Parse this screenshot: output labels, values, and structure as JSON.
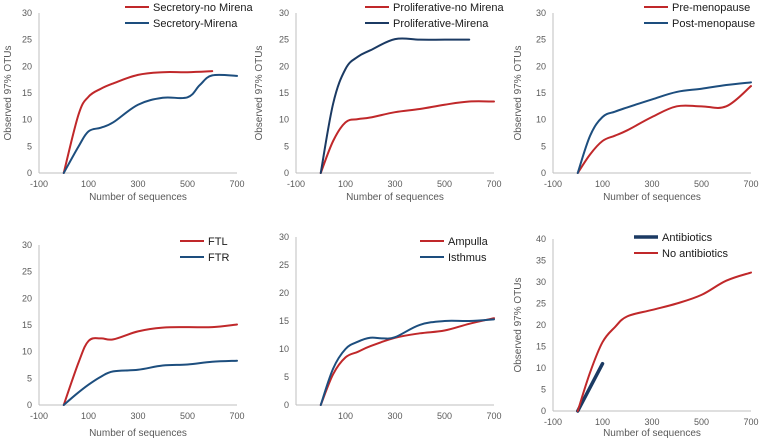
{
  "colors": {
    "red": "#c0282a",
    "navy": "#1d4e7e",
    "darknavy": "#1b3a63",
    "axis": "#bfbfbf"
  },
  "chart_data": [
    {
      "type": "line",
      "xlabel": "Number of sequences",
      "ylabel": "Observed 97% OTUs",
      "xlim": [
        -100,
        700
      ],
      "ylim": [
        0,
        30
      ],
      "xticks": [
        -100,
        100,
        300,
        500,
        700
      ],
      "xtick_labels": [
        "-100",
        "100",
        "300",
        "500",
        "700"
      ],
      "yticks": [
        0,
        5,
        10,
        15,
        20,
        25,
        30
      ],
      "ytick_labels": [
        "0",
        "5",
        "10",
        "15",
        "20",
        "25",
        "30"
      ],
      "legend_position": "top-right",
      "series": [
        {
          "name": "Secretory-no Mirena",
          "color": "red",
          "width": 2,
          "x": [
            0,
            60,
            100,
            150,
            200,
            300,
            400,
            500,
            600
          ],
          "y": [
            0,
            11,
            14.3,
            15.8,
            16.8,
            18.4,
            18.9,
            18.9,
            19.1
          ]
        },
        {
          "name": "Secretory-Mirena",
          "color": "navy",
          "width": 2,
          "x": [
            0,
            60,
            100,
            150,
            200,
            300,
            400,
            500,
            550,
            600,
            700
          ],
          "y": [
            0,
            5,
            7.8,
            8.5,
            9.5,
            12.8,
            14.1,
            14.2,
            16.5,
            18.3,
            18.2
          ]
        }
      ]
    },
    {
      "type": "line",
      "xlabel": "Number of sequences",
      "ylabel": "Observed 97% OTUs",
      "xlim": [
        -100,
        700
      ],
      "ylim": [
        0,
        30
      ],
      "xticks": [
        -100,
        100,
        300,
        500,
        700
      ],
      "xtick_labels": [
        "-100",
        "100",
        "300",
        "500",
        "700"
      ],
      "yticks": [
        0,
        5,
        10,
        15,
        20,
        25,
        30
      ],
      "ytick_labels": [
        "0",
        "5",
        "10",
        "15",
        "20",
        "25",
        "30"
      ],
      "legend_position": "top-right",
      "series": [
        {
          "name": "Proliferative-no Mirena",
          "color": "red",
          "width": 2,
          "x": [
            0,
            50,
            100,
            150,
            200,
            300,
            400,
            500,
            600,
            700
          ],
          "y": [
            0,
            6,
            9.5,
            10.1,
            10.4,
            11.4,
            12,
            12.8,
            13.4,
            13.4
          ]
        },
        {
          "name": "Proliferative-Mirena",
          "color": "darknavy",
          "width": 2,
          "x": [
            0,
            50,
            100,
            150,
            200,
            300,
            400,
            500,
            600
          ],
          "y": [
            0,
            13,
            19.5,
            21.8,
            23,
            25.1,
            25,
            25,
            25
          ]
        }
      ]
    },
    {
      "type": "line",
      "xlabel": "Number of sequences",
      "ylabel": "Observed 97% OTUs",
      "xlim": [
        -100,
        700
      ],
      "ylim": [
        0,
        30
      ],
      "xticks": [
        -100,
        100,
        300,
        500,
        700
      ],
      "xtick_labels": [
        "-100",
        "100",
        "300",
        "500",
        "700"
      ],
      "yticks": [
        0,
        5,
        10,
        15,
        20,
        25,
        30
      ],
      "ytick_labels": [
        "0",
        "5",
        "10",
        "15",
        "20",
        "25",
        "30"
      ],
      "legend_position": "top-right",
      "series": [
        {
          "name": "Pre-menopause",
          "color": "red",
          "width": 2,
          "x": [
            0,
            50,
            100,
            150,
            200,
            300,
            400,
            500,
            600,
            700
          ],
          "y": [
            0,
            3.5,
            6,
            7,
            8,
            10.5,
            12.5,
            12.5,
            12.5,
            16.3
          ]
        },
        {
          "name": "Post-menopause",
          "color": "navy",
          "width": 2,
          "x": [
            0,
            50,
            100,
            150,
            200,
            300,
            400,
            500,
            600,
            700
          ],
          "y": [
            0,
            7,
            10.5,
            11.5,
            12.3,
            13.8,
            15.2,
            15.8,
            16.5,
            17
          ]
        }
      ]
    },
    {
      "type": "line",
      "xlabel": "Number of sequences",
      "ylabel": "",
      "xlim": [
        -100,
        700
      ],
      "ylim": [
        0,
        30
      ],
      "xticks": [
        -100,
        100,
        300,
        500,
        700
      ],
      "xtick_labels": [
        "-100",
        "100",
        "300",
        "500",
        "700"
      ],
      "yticks": [
        0,
        5,
        10,
        15,
        20,
        25,
        30
      ],
      "ytick_labels": [
        "0",
        "5",
        "10",
        "15",
        "20",
        "25",
        "30"
      ],
      "legend_position": "top-right",
      "series": [
        {
          "name": "FTL",
          "color": "red",
          "width": 2,
          "x": [
            0,
            60,
            100,
            150,
            200,
            300,
            400,
            500,
            600,
            700
          ],
          "y": [
            0,
            8,
            12,
            12.5,
            12.3,
            13.8,
            14.5,
            14.6,
            14.6,
            15.1
          ]
        },
        {
          "name": "FTR",
          "color": "navy",
          "width": 2,
          "x": [
            0,
            50,
            100,
            150,
            200,
            300,
            400,
            500,
            600,
            700
          ],
          "y": [
            0,
            2,
            3.8,
            5.3,
            6.3,
            6.6,
            7.4,
            7.6,
            8.1,
            8.3
          ]
        }
      ]
    },
    {
      "type": "line",
      "xlabel": "",
      "ylabel": "",
      "xlim": [
        -100,
        700
      ],
      "ylim": [
        0,
        30
      ],
      "xticks": [
        100,
        300,
        500,
        700
      ],
      "xtick_labels": [
        "100",
        "300",
        "500",
        "700"
      ],
      "yticks": [
        0,
        5,
        10,
        15,
        20,
        25,
        30
      ],
      "ytick_labels": [
        "0",
        "5",
        "10",
        "15",
        "20",
        "25",
        "30"
      ],
      "legend_position": "top-right",
      "series": [
        {
          "name": "Ampulla",
          "color": "red",
          "width": 2,
          "x": [
            0,
            50,
            100,
            150,
            200,
            300,
            400,
            500,
            600,
            700
          ],
          "y": [
            0,
            5.5,
            8.5,
            9.5,
            10.5,
            12,
            12.8,
            13.3,
            14.5,
            15.5
          ]
        },
        {
          "name": "Isthmus",
          "color": "navy",
          "width": 2,
          "x": [
            0,
            50,
            100,
            150,
            200,
            250,
            300,
            400,
            500,
            600,
            700
          ],
          "y": [
            0,
            6.5,
            10,
            11.3,
            12,
            11.9,
            12.1,
            14.3,
            15,
            15,
            15.3
          ]
        }
      ]
    },
    {
      "type": "line",
      "xlabel": "Number of sequences",
      "ylabel": "Observed 97% OTUs",
      "xlim": [
        -100,
        700
      ],
      "ylim": [
        0,
        40
      ],
      "xticks": [
        -100,
        100,
        300,
        500,
        700
      ],
      "xtick_labels": [
        "-100",
        "100",
        "300",
        "500",
        "700"
      ],
      "yticks": [
        0,
        5,
        10,
        15,
        20,
        25,
        30,
        35,
        40
      ],
      "ytick_labels": [
        "0",
        "5",
        "10",
        "15",
        "20",
        "25",
        "30",
        "35",
        "40"
      ],
      "legend_position": "top-left",
      "series": [
        {
          "name": "Antibiotics",
          "color": "darknavy",
          "width": 3.5,
          "x": [
            0,
            100
          ],
          "y": [
            0,
            11
          ]
        },
        {
          "name": "No antibiotics",
          "color": "red",
          "width": 2,
          "x": [
            0,
            50,
            100,
            150,
            200,
            300,
            400,
            500,
            600,
            700
          ],
          "y": [
            0,
            9,
            16,
            19.5,
            22,
            23.5,
            25,
            27,
            30.3,
            32.2
          ]
        }
      ]
    }
  ]
}
